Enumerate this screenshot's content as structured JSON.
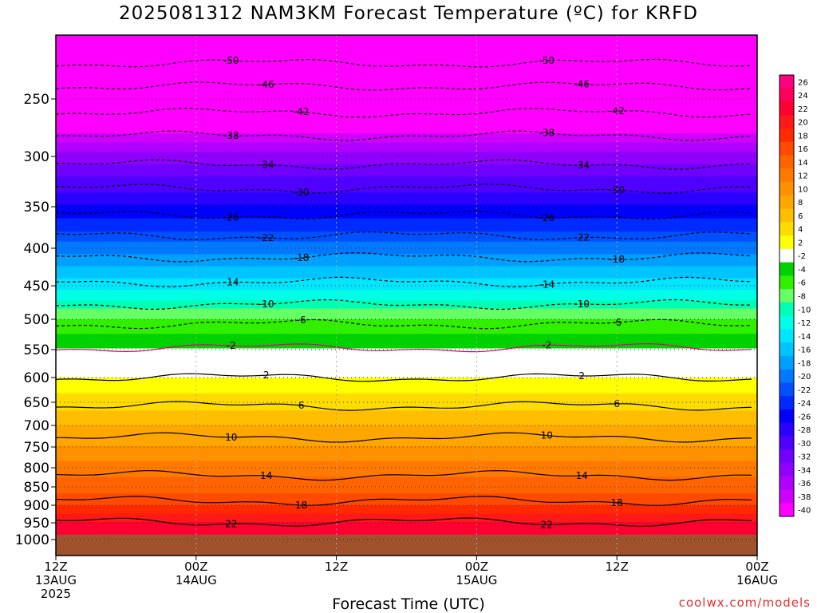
{
  "title": "2025081312 NAM3KM Forecast Temperature (ºC) for KRFD",
  "credit": "coolwx.com/models",
  "chart_data": {
    "type": "heatmap",
    "title": "2025081312 NAM3KM Forecast Temperature (ºC) for KRFD",
    "xlabel": "Forecast Time (UTC)",
    "ylabel": "",
    "y_axis": "pressure (hPa), inverted",
    "ylim": [
      1000,
      200
    ],
    "yticks": [
      250,
      300,
      350,
      400,
      450,
      500,
      550,
      600,
      650,
      700,
      750,
      800,
      850,
      900,
      950,
      1000
    ],
    "xticks": [
      {
        "hour": 0,
        "line1": "12Z",
        "line2": "13AUG",
        "line3": "2025"
      },
      {
        "hour": 12,
        "line1": "00Z",
        "line2": "14AUG",
        "line3": ""
      },
      {
        "hour": 24,
        "line1": "12Z",
        "line2": "",
        "line3": ""
      },
      {
        "hour": 36,
        "line1": "00Z",
        "line2": "15AUG",
        "line3": ""
      },
      {
        "hour": 48,
        "line1": "12Z",
        "line2": "",
        "line3": ""
      },
      {
        "hour": 60,
        "line1": "00Z",
        "line2": "16AUG",
        "line3": ""
      }
    ],
    "xlim": [
      0,
      60
    ],
    "grid": true,
    "colorbar_labels": [
      26,
      24,
      22,
      20,
      18,
      16,
      14,
      12,
      10,
      8,
      6,
      4,
      2,
      -2,
      -4,
      -6,
      -8,
      -10,
      -12,
      -14,
      -16,
      -18,
      -20,
      -22,
      -24,
      -26,
      -28,
      -30,
      -32,
      -34,
      -36,
      -38,
      -40
    ],
    "colorbar_colors": [
      "#ff0080",
      "#ff005a",
      "#ff0030",
      "#ff1818",
      "#ff2a00",
      "#ff4a00",
      "#ff6400",
      "#ff7a00",
      "#ff9000",
      "#ffa600",
      "#ffbe00",
      "#ffdc00",
      "#ffff00",
      "#ffffff",
      "#00d200",
      "#30f000",
      "#66ff66",
      "#00ffb4",
      "#00ffe6",
      "#00e6ff",
      "#00c4ff",
      "#00a0ff",
      "#0078ff",
      "#0050ff",
      "#002aff",
      "#0000ff",
      "#2a00ff",
      "#5000ff",
      "#7000ff",
      "#9000ff",
      "#b000ff",
      "#d000ff",
      "#ff00ff"
    ],
    "levels_approx_temperature": [
      {
        "p": 1000,
        "t": 25
      },
      {
        "p": 950,
        "t": 22
      },
      {
        "p": 900,
        "t": 18
      },
      {
        "p": 850,
        "t": 15
      },
      {
        "p": 800,
        "t": 13
      },
      {
        "p": 750,
        "t": 10
      },
      {
        "p": 700,
        "t": 8
      },
      {
        "p": 650,
        "t": 5
      },
      {
        "p": 600,
        "t": 2
      },
      {
        "p": 550,
        "t": -2
      },
      {
        "p": 500,
        "t": -6
      },
      {
        "p": 450,
        "t": -13
      },
      {
        "p": 400,
        "t": -19
      },
      {
        "p": 350,
        "t": -26
      },
      {
        "p": 300,
        "t": -33
      },
      {
        "p": 250,
        "t": -45
      }
    ],
    "contours": [
      {
        "value": -50,
        "label": "50",
        "p": 222
      },
      {
        "value": -46,
        "label": "46",
        "p": 240
      },
      {
        "value": -42,
        "label": "42",
        "p": 262
      },
      {
        "value": -38,
        "label": "38",
        "p": 282
      },
      {
        "value": -34,
        "label": "34",
        "p": 308
      },
      {
        "value": -30,
        "label": "30",
        "p": 332
      },
      {
        "value": -26,
        "label": "26",
        "p": 360
      },
      {
        "value": -22,
        "label": "22",
        "p": 385
      },
      {
        "value": -18,
        "label": "18",
        "p": 412
      },
      {
        "value": -14,
        "label": "14",
        "p": 445
      },
      {
        "value": -10,
        "label": "10",
        "p": 478
      },
      {
        "value": -6,
        "label": "6",
        "p": 508
      },
      {
        "value": -2,
        "label": "2",
        "p": 547
      },
      {
        "value": 2,
        "label": "2",
        "p": 600
      },
      {
        "value": 6,
        "label": "6",
        "p": 658
      },
      {
        "value": 10,
        "label": "10",
        "p": 728
      },
      {
        "value": 14,
        "label": "14",
        "p": 820
      },
      {
        "value": 18,
        "label": "18",
        "p": 888
      },
      {
        "value": 22,
        "label": "22",
        "p": 948
      }
    ]
  }
}
